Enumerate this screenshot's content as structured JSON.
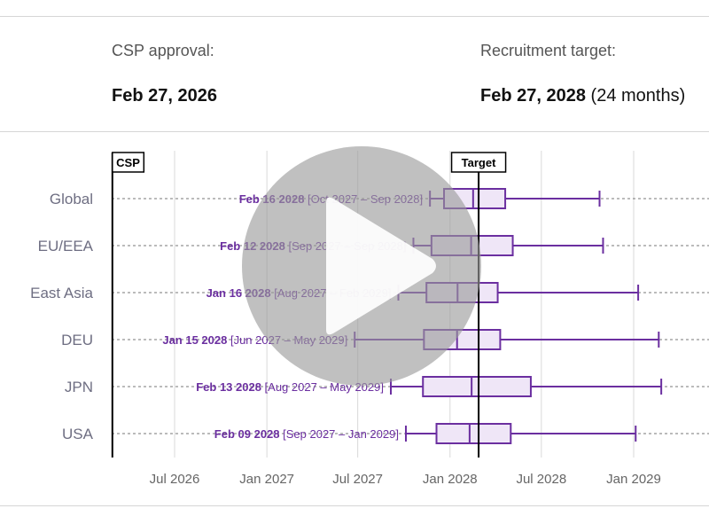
{
  "header": {
    "csp_label": "CSP approval:",
    "csp_date": "Feb 27, 2026",
    "target_label": "Recruitment target:",
    "target_date": "Feb 27, 2028",
    "target_duration": "(24 months)"
  },
  "colors": {
    "accent": "#6b2fa0",
    "box_fill": "#efe6f7",
    "grid": "#d9d9d9",
    "row_label": "#6e6e82",
    "overlay": "#9a9a9a"
  },
  "play_button": {
    "icon": "play-icon"
  },
  "chart_data": {
    "type": "box",
    "orientation": "horizontal",
    "x_axis": {
      "type": "date",
      "ticks": [
        {
          "value": "2026-07-01",
          "label": "Jul 2026"
        },
        {
          "value": "2027-01-01",
          "label": "Jan 2027"
        },
        {
          "value": "2027-07-01",
          "label": "Jul 2027"
        },
        {
          "value": "2028-01-01",
          "label": "Jan 2028"
        },
        {
          "value": "2028-07-01",
          "label": "Jul 2028"
        },
        {
          "value": "2029-01-01",
          "label": "Jan 2029"
        }
      ],
      "range": [
        "2026-02-27",
        "2029-05-10"
      ],
      "grid": true
    },
    "markers": [
      {
        "label": "CSP",
        "date": "2026-02-27"
      },
      {
        "label": "Target",
        "date": "2028-02-27"
      }
    ],
    "rows": [
      {
        "label": "Global",
        "median_label": "Feb 16 2028",
        "range_label": "[Oct 2027 – Sep 2028]",
        "whisker_low": "2027-11-22",
        "q1": "2027-12-20",
        "median": "2028-02-16",
        "q3": "2028-04-20",
        "whisker_high": "2028-10-25"
      },
      {
        "label": "EU/EEA",
        "median_label": "Feb 12 2028",
        "range_label": "[Sep 2027 – Sep 2028]",
        "whisker_low": "2027-10-20",
        "q1": "2027-11-25",
        "median": "2028-02-12",
        "q3": "2028-05-05",
        "whisker_high": "2028-11-01"
      },
      {
        "label": "East Asia",
        "median_label": "Jan 16 2028",
        "range_label": "[Aug 2027 – Feb 2029]",
        "whisker_low": "2027-09-20",
        "q1": "2027-11-15",
        "median": "2028-01-16",
        "q3": "2028-04-05",
        "whisker_high": "2029-01-10"
      },
      {
        "label": "DEU",
        "median_label": "Jan 15 2028",
        "range_label": "[Jun 2027 – May 2029]",
        "whisker_low": "2027-06-25",
        "q1": "2027-11-10",
        "median": "2028-01-15",
        "q3": "2028-04-10",
        "whisker_high": "2029-02-20"
      },
      {
        "label": "JPN",
        "median_label": "Feb 13 2028",
        "range_label": "[Aug 2027 – May 2029]",
        "whisker_low": "2027-09-05",
        "q1": "2027-11-08",
        "median": "2028-02-13",
        "q3": "2028-06-10",
        "whisker_high": "2029-02-25"
      },
      {
        "label": "USA",
        "median_label": "Feb 09 2028",
        "range_label": "[Sep 2027 – Jan 2029]",
        "whisker_low": "2027-10-05",
        "q1": "2027-12-05",
        "median": "2028-02-09",
        "q3": "2028-05-01",
        "whisker_high": "2029-01-05"
      }
    ]
  }
}
